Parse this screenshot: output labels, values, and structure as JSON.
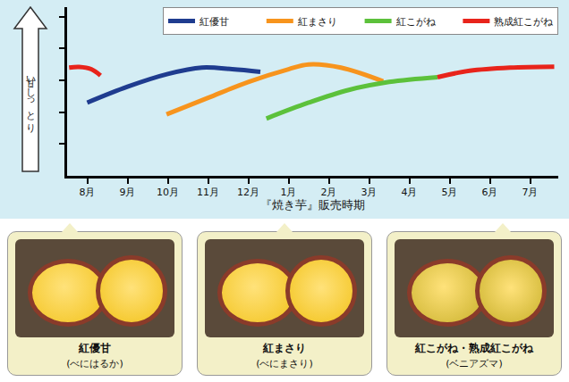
{
  "chart_data": {
    "type": "line",
    "xlabel": "『焼き芋』販売時期",
    "ylabel": "甘い・しっとり",
    "xlim": [
      -0.5,
      11.7
    ],
    "xticks": [
      {
        "value": 0,
        "label": "8月"
      },
      {
        "value": 1,
        "label": "9月"
      },
      {
        "value": 2,
        "label": "10月"
      },
      {
        "value": 3,
        "label": "11月"
      },
      {
        "value": 4,
        "label": "12月"
      },
      {
        "value": 5,
        "label": "1月"
      },
      {
        "value": 6,
        "label": "2月"
      },
      {
        "value": 7,
        "label": "3月"
      },
      {
        "value": 8,
        "label": "4月"
      },
      {
        "value": 9,
        "label": "5月"
      },
      {
        "value": 10,
        "label": "6月"
      },
      {
        "value": 11,
        "label": "7月"
      }
    ],
    "ylim": [
      0,
      5.3
    ],
    "yticks": [
      1,
      2,
      3,
      4,
      5
    ],
    "tick_labels": "x",
    "grid": false,
    "legend": "top right",
    "series": [
      {
        "name": "紅優甘",
        "color": "#1f3c8f",
        "x": [
          0,
          1,
          2,
          2.85,
          3.6,
          4.3
        ],
        "values": [
          2.3,
          2.8,
          3.2,
          3.4,
          3.35,
          3.27
        ]
      },
      {
        "name": "紅まさり",
        "color": "#f7941d",
        "x": [
          1.97,
          3,
          4,
          5,
          5.5,
          6.3,
          7.35
        ],
        "values": [
          1.93,
          2.45,
          2.95,
          3.35,
          3.5,
          3.4,
          2.97
        ]
      },
      {
        "name": "紅こがね",
        "color": "#5cc13b",
        "x": [
          4.45,
          5.5,
          6.5,
          7.5,
          8.7
        ],
        "values": [
          1.8,
          2.3,
          2.7,
          2.95,
          3.1
        ]
      },
      {
        "name": "熟成紅こがね",
        "color": "#e8241b",
        "x": [
          -0.45,
          -0.2,
          0.1,
          0.33,
          null,
          8.7,
          9.5,
          10.5,
          11.6
        ],
        "values": [
          3.4,
          3.42,
          3.35,
          3.15,
          null,
          3.1,
          3.3,
          3.4,
          3.43
        ]
      }
    ]
  },
  "panels": [
    {
      "name": "紅優甘",
      "reading": "(べにはるか)"
    },
    {
      "name": "紅まさり",
      "reading": "(べにまさり)"
    },
    {
      "name": "紅こがね・熟成紅こがね",
      "reading": "(ベニアズマ)"
    }
  ]
}
